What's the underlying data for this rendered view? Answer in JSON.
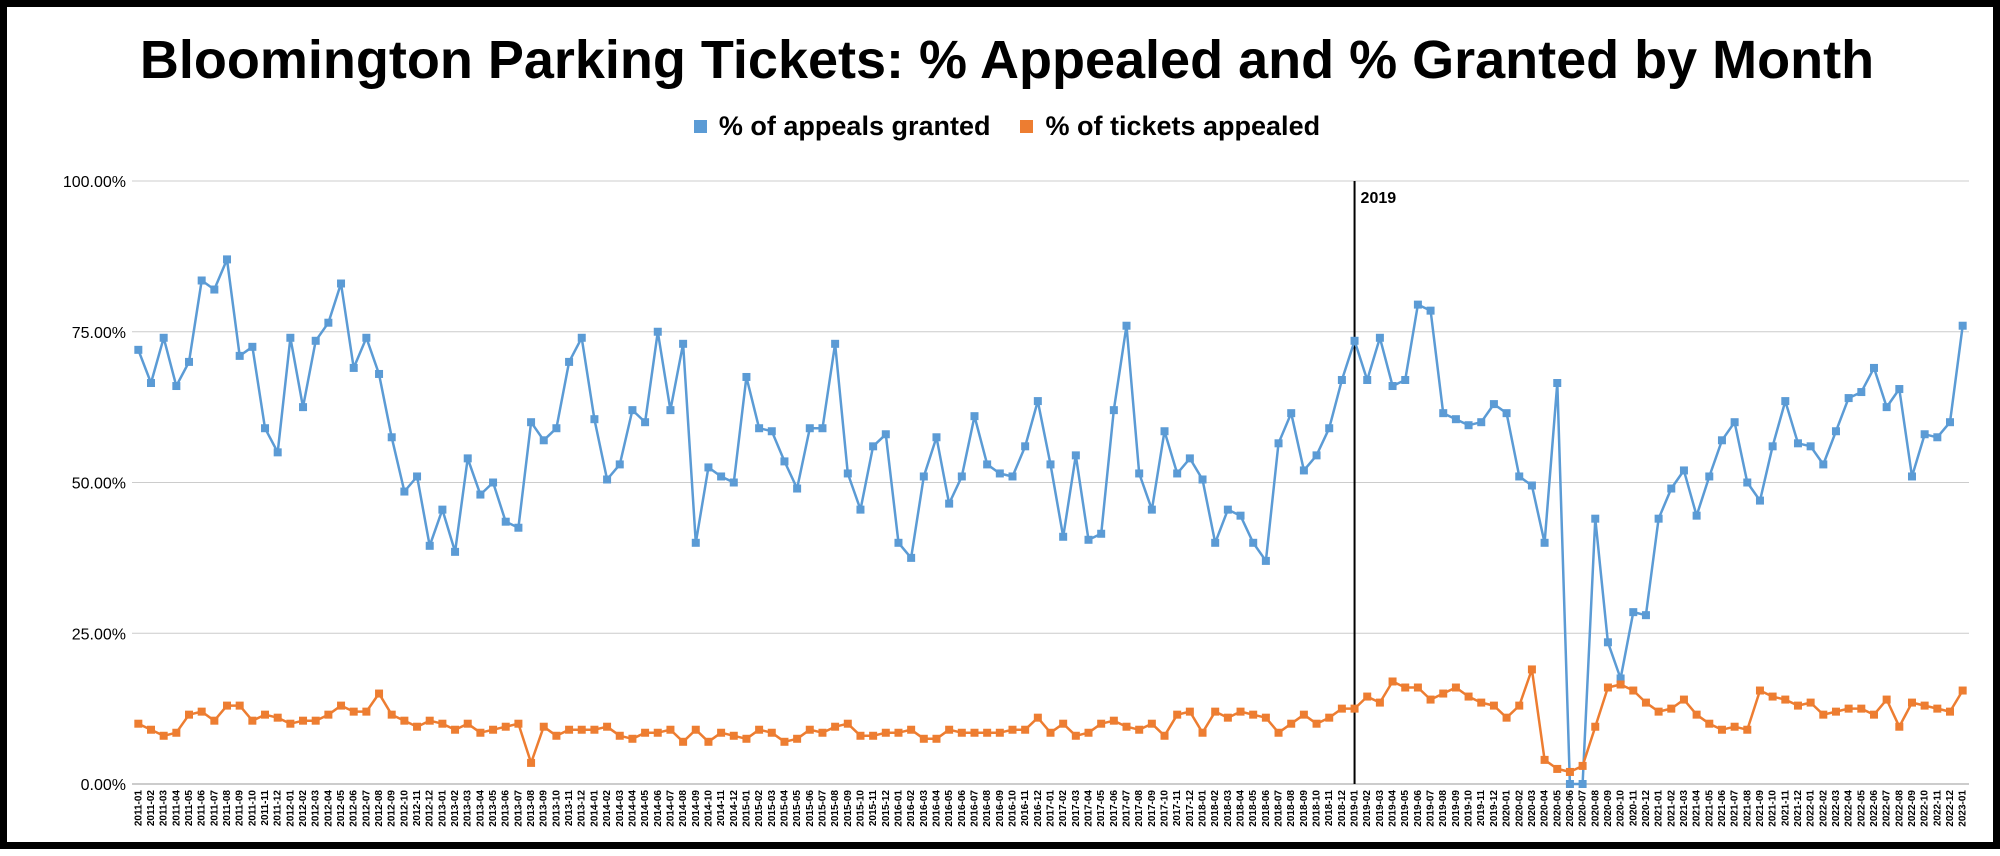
{
  "chart_data": {
    "type": "line",
    "title": "Bloomington Parking Tickets: % Appealed and % Granted by Month",
    "xlabel": "",
    "ylabel": "",
    "ylim": [
      0,
      100
    ],
    "yticks": [
      "0.00%",
      "25.00%",
      "50.00%",
      "75.00%",
      "100.00%"
    ],
    "grid": true,
    "legend_position": "top",
    "annotation": {
      "label": "2019",
      "x": "2019-01"
    },
    "categories": [
      "2011-01",
      "2011-02",
      "2011-03",
      "2011-04",
      "2011-05",
      "2011-06",
      "2011-07",
      "2011-08",
      "2011-09",
      "2011-10",
      "2011-11",
      "2011-12",
      "2012-01",
      "2012-02",
      "2012-03",
      "2012-04",
      "2012-05",
      "2012-06",
      "2012-07",
      "2012-08",
      "2012-09",
      "2012-10",
      "2012-11",
      "2012-12",
      "2013-01",
      "2013-02",
      "2013-03",
      "2013-04",
      "2013-05",
      "2013-06",
      "2013-07",
      "2013-08",
      "2013-09",
      "2013-10",
      "2013-11",
      "2013-12",
      "2014-01",
      "2014-02",
      "2014-03",
      "2014-04",
      "2014-05",
      "2014-06",
      "2014-07",
      "2014-08",
      "2014-09",
      "2014-10",
      "2014-11",
      "2014-12",
      "2015-01",
      "2015-02",
      "2015-03",
      "2015-04",
      "2015-05",
      "2015-06",
      "2015-07",
      "2015-08",
      "2015-09",
      "2015-10",
      "2015-11",
      "2015-12",
      "2016-01",
      "2016-02",
      "2016-03",
      "2016-04",
      "2016-05",
      "2016-06",
      "2016-07",
      "2016-08",
      "2016-09",
      "2016-10",
      "2016-11",
      "2016-12",
      "2017-01",
      "2017-02",
      "2017-03",
      "2017-04",
      "2017-05",
      "2017-06",
      "2017-07",
      "2017-08",
      "2017-09",
      "2017-10",
      "2017-11",
      "2017-12",
      "2018-01",
      "2018-02",
      "2018-03",
      "2018-04",
      "2018-05",
      "2018-06",
      "2018-07",
      "2018-08",
      "2018-09",
      "2018-10",
      "2018-11",
      "2018-12",
      "2019-01",
      "2019-02",
      "2019-03",
      "2019-04",
      "2019-05",
      "2019-06",
      "2019-07",
      "2019-08",
      "2019-09",
      "2019-10",
      "2019-11",
      "2019-12",
      "2020-01",
      "2020-02",
      "2020-03",
      "2020-04",
      "2020-05",
      "2020-06",
      "2020-07",
      "2020-08",
      "2020-09",
      "2020-10",
      "2020-11",
      "2020-12",
      "2021-01",
      "2021-02",
      "2021-03",
      "2021-04",
      "2021-05",
      "2021-06",
      "2021-07",
      "2021-08",
      "2021-09",
      "2021-10",
      "2021-11",
      "2021-12",
      "2022-01",
      "2022-02",
      "2022-03",
      "2022-04",
      "2022-05",
      "2022-06",
      "2022-07",
      "2022-08",
      "2022-09",
      "2022-10",
      "2022-11",
      "2022-12",
      "2023-01"
    ],
    "tick_labels": [
      "2011-01",
      "2011-02",
      "2011-03",
      "2011-04",
      "2011-05",
      "2011-06",
      "2011-07",
      "2011-08",
      "2011-09",
      "2011-10",
      "2011-11",
      "2011-12",
      "2012-01",
      "2012-02",
      "2012-03",
      "2012-04",
      "2012-05",
      "2012-06",
      "2012-07",
      "2012-08",
      "2012-09",
      "2012-10",
      "2012-11",
      "2012-12",
      "2013-01",
      "2013-02",
      "2013-03",
      "2013-04",
      "2013-05",
      "2013-06",
      "2013-07",
      "2013-08",
      "2013-09",
      "2013-10",
      "2013-11",
      "2013-12",
      "2014-01",
      "2014-02",
      "2014-03",
      "2014-04",
      "2014-05",
      "2014-06",
      "2014-07",
      "2014-08",
      "2014-09",
      "2014-10",
      "2014-11",
      "2014-12",
      "2015-01",
      "2015-02",
      "2015-03",
      "2015-04",
      "2015-05",
      "2015-06",
      "2015-07",
      "2015-08",
      "2015-09",
      "2015-10",
      "2015-11",
      "2015-12",
      "2016-01",
      "2016-02",
      "2016-03",
      "2016-04",
      "2016-05",
      "2016-06",
      "2016-07",
      "2016-08",
      "2016-09",
      "2016-10",
      "2016-11",
      "2016-12",
      "2017-01",
      "2017-02",
      "2017-03",
      "2017-04",
      "2017-05",
      "2017-06",
      "2017-07",
      "2017-08",
      "2017-09",
      "2017-10",
      "2017-11",
      "2017-12",
      "2018-01",
      "2018-02",
      "2018-03",
      "2018-04",
      "2018-05",
      "2018-06",
      "2018-07",
      "2018-08",
      "2018-09",
      "2018-10",
      "2018-11",
      "2018-12",
      "2019-01",
      "2019-02",
      "2019-03",
      "2019-04",
      "2019-05",
      "2019-06",
      "2019-07",
      "2019-08",
      "2019-09",
      "2019-10",
      "2019-11",
      "2019-12",
      "2020-01",
      "2020-02",
      "2020-03",
      "2020-04",
      "2020-05",
      "2020-06",
      "2020-07",
      "2020-08",
      "2020-09",
      "2020-10",
      "2020-11",
      "2020-12",
      "2021-01",
      "2021-02",
      "2021-03",
      "2021-04",
      "2021-05",
      "2021-06",
      "2021-07",
      "2021-08",
      "2021-09",
      "2021-10",
      "2021-11",
      "2021-12",
      "2022-01",
      "2022-02",
      "2022-03",
      "2022-04",
      "2022-05",
      "2022-06",
      "2022-07",
      "2022-08",
      "2022-09",
      "2022-10",
      "2022-11",
      "2022-12",
      "2023-01"
    ],
    "series": [
      {
        "name": "% of appeals granted",
        "color": "#5b9bd5",
        "values": [
          72,
          66.5,
          74,
          66,
          70,
          83.5,
          82,
          87,
          71,
          72.5,
          59,
          55,
          74,
          62.5,
          73.5,
          76.5,
          83,
          69,
          74,
          68,
          57.5,
          48.5,
          51,
          39.5,
          45.5,
          38.5,
          54,
          48,
          50,
          43.5,
          42.5,
          60,
          57,
          59,
          70,
          74,
          60.5,
          50.5,
          53,
          62,
          60,
          75,
          62,
          73,
          40,
          52.5,
          51,
          50,
          67.5,
          59,
          58.5,
          53.5,
          49,
          59,
          59,
          73,
          51.5,
          45.5,
          56,
          58,
          40,
          37.5,
          51,
          57.5,
          46.5,
          51,
          61,
          53,
          51.5,
          51,
          56,
          63.5,
          53,
          41,
          54.5,
          40.5,
          41.5,
          62,
          76,
          51.5,
          45.5,
          58.5,
          51.5,
          54,
          50.5,
          40,
          45.5,
          44.5,
          40,
          37,
          56.5,
          61.5,
          52,
          54.5,
          59,
          67,
          73.5,
          67,
          74,
          66,
          67,
          79.5,
          78.5,
          61.5,
          60.5,
          59.5,
          60,
          63,
          61.5,
          51,
          49.5,
          40,
          66.5,
          0,
          0,
          44,
          23.5,
          17.5,
          28.5,
          28,
          44,
          49,
          52,
          44.5,
          51,
          57,
          60,
          50,
          47,
          56,
          63.5,
          56.5,
          56,
          53,
          58.5,
          64,
          65,
          69,
          62.5,
          65.5,
          51,
          58,
          57.5,
          60,
          76
        ]
      },
      {
        "name": "% of tickets appealed",
        "color": "#ed7d31",
        "values": [
          10,
          9,
          8,
          8.5,
          11.5,
          12,
          10.5,
          13,
          13,
          10.5,
          11.5,
          11,
          10,
          10.5,
          10.5,
          11.5,
          13,
          12,
          12,
          15,
          11.5,
          10.5,
          9.5,
          10.5,
          10,
          9,
          10,
          8.5,
          9,
          9.5,
          10,
          3.5,
          9.5,
          8,
          9,
          9,
          9,
          9.5,
          8,
          7.5,
          8.5,
          8.5,
          9,
          7,
          9,
          7,
          8.5,
          8,
          7.5,
          9,
          8.5,
          7,
          7.5,
          9,
          8.5,
          9.5,
          10,
          8,
          8,
          8.5,
          8.5,
          9,
          7.5,
          7.5,
          9,
          8.5,
          8.5,
          8.5,
          8.5,
          9,
          9,
          11,
          8.5,
          10,
          8,
          8.5,
          10,
          10.5,
          9.5,
          9,
          10,
          8,
          11.5,
          12,
          8.5,
          12,
          11,
          12,
          11.5,
          11,
          8.5,
          10,
          11.5,
          10,
          11,
          12.5,
          12.5,
          14.5,
          13.5,
          17,
          16,
          16,
          14,
          15,
          16,
          14.5,
          13.5,
          13,
          11,
          13,
          19,
          4,
          2.5,
          2,
          3,
          9.5,
          16,
          16.5,
          15.5,
          13.5,
          12,
          12.5,
          14,
          11.5,
          10,
          9,
          9.5,
          9,
          15.5,
          14.5,
          14,
          13,
          13.5,
          11.5,
          12,
          12.5,
          12.5,
          11.5,
          14,
          9.5,
          13.5,
          13,
          12.5,
          12,
          15.5
        ]
      }
    ]
  }
}
